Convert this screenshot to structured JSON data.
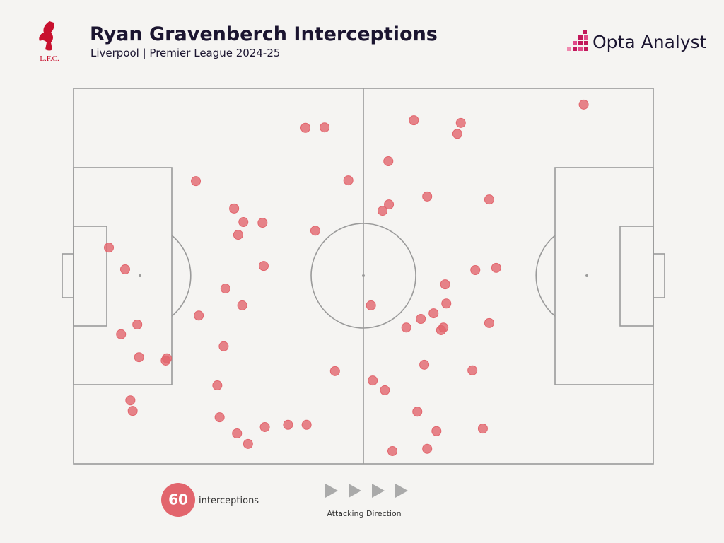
{
  "chart_data": {
    "type": "scatter",
    "title": "Ryan Gravenberch Interceptions",
    "subtitle": "Liverpool | Premier League 2024-25",
    "club_badge": "L.F.C.",
    "brand": "Opta Analyst",
    "total": 60,
    "total_label": "interceptions",
    "direction_label": "Attacking Direction",
    "color": "#e2656d",
    "xlim": [
      0,
      100
    ],
    "ylim": [
      0,
      100
    ],
    "x": [
      88.0,
      40.0,
      43.3,
      58.7,
      66.8,
      66.2,
      54.3,
      21.1,
      47.4,
      61.0,
      71.7,
      27.7,
      54.4,
      53.3,
      29.3,
      32.6,
      28.4,
      41.7,
      6.1,
      8.9,
      32.8,
      69.3,
      72.9,
      26.2,
      64.1,
      29.1,
      51.3,
      64.3,
      62.1,
      21.6,
      59.9,
      11.0,
      71.7,
      57.4,
      63.8,
      63.4,
      8.2,
      25.9,
      11.3,
      16.1,
      15.9,
      60.5,
      45.1,
      68.8,
      51.6,
      24.8,
      53.7,
      9.8,
      10.2,
      59.3,
      25.2,
      37.0,
      40.2,
      33.0,
      70.6,
      62.6,
      28.2,
      30.1,
      61.0,
      55.0
    ],
    "values": [
      95.7,
      89.5,
      89.6,
      91.5,
      90.8,
      87.9,
      80.6,
      75.3,
      75.5,
      71.2,
      70.4,
      68.0,
      69.1,
      67.4,
      64.4,
      64.2,
      61.0,
      62.1,
      57.6,
      51.8,
      52.7,
      51.6,
      52.2,
      46.7,
      47.8,
      42.2,
      42.2,
      42.7,
      40.1,
      39.5,
      38.6,
      37.1,
      37.5,
      36.3,
      36.3,
      35.6,
      34.5,
      31.3,
      28.4,
      28.1,
      27.5,
      26.4,
      24.7,
      24.9,
      22.2,
      20.9,
      19.6,
      16.9,
      14.1,
      13.9,
      12.4,
      10.4,
      10.4,
      9.8,
      9.4,
      8.7,
      8.1,
      5.3,
      4.0,
      3.4
    ]
  }
}
